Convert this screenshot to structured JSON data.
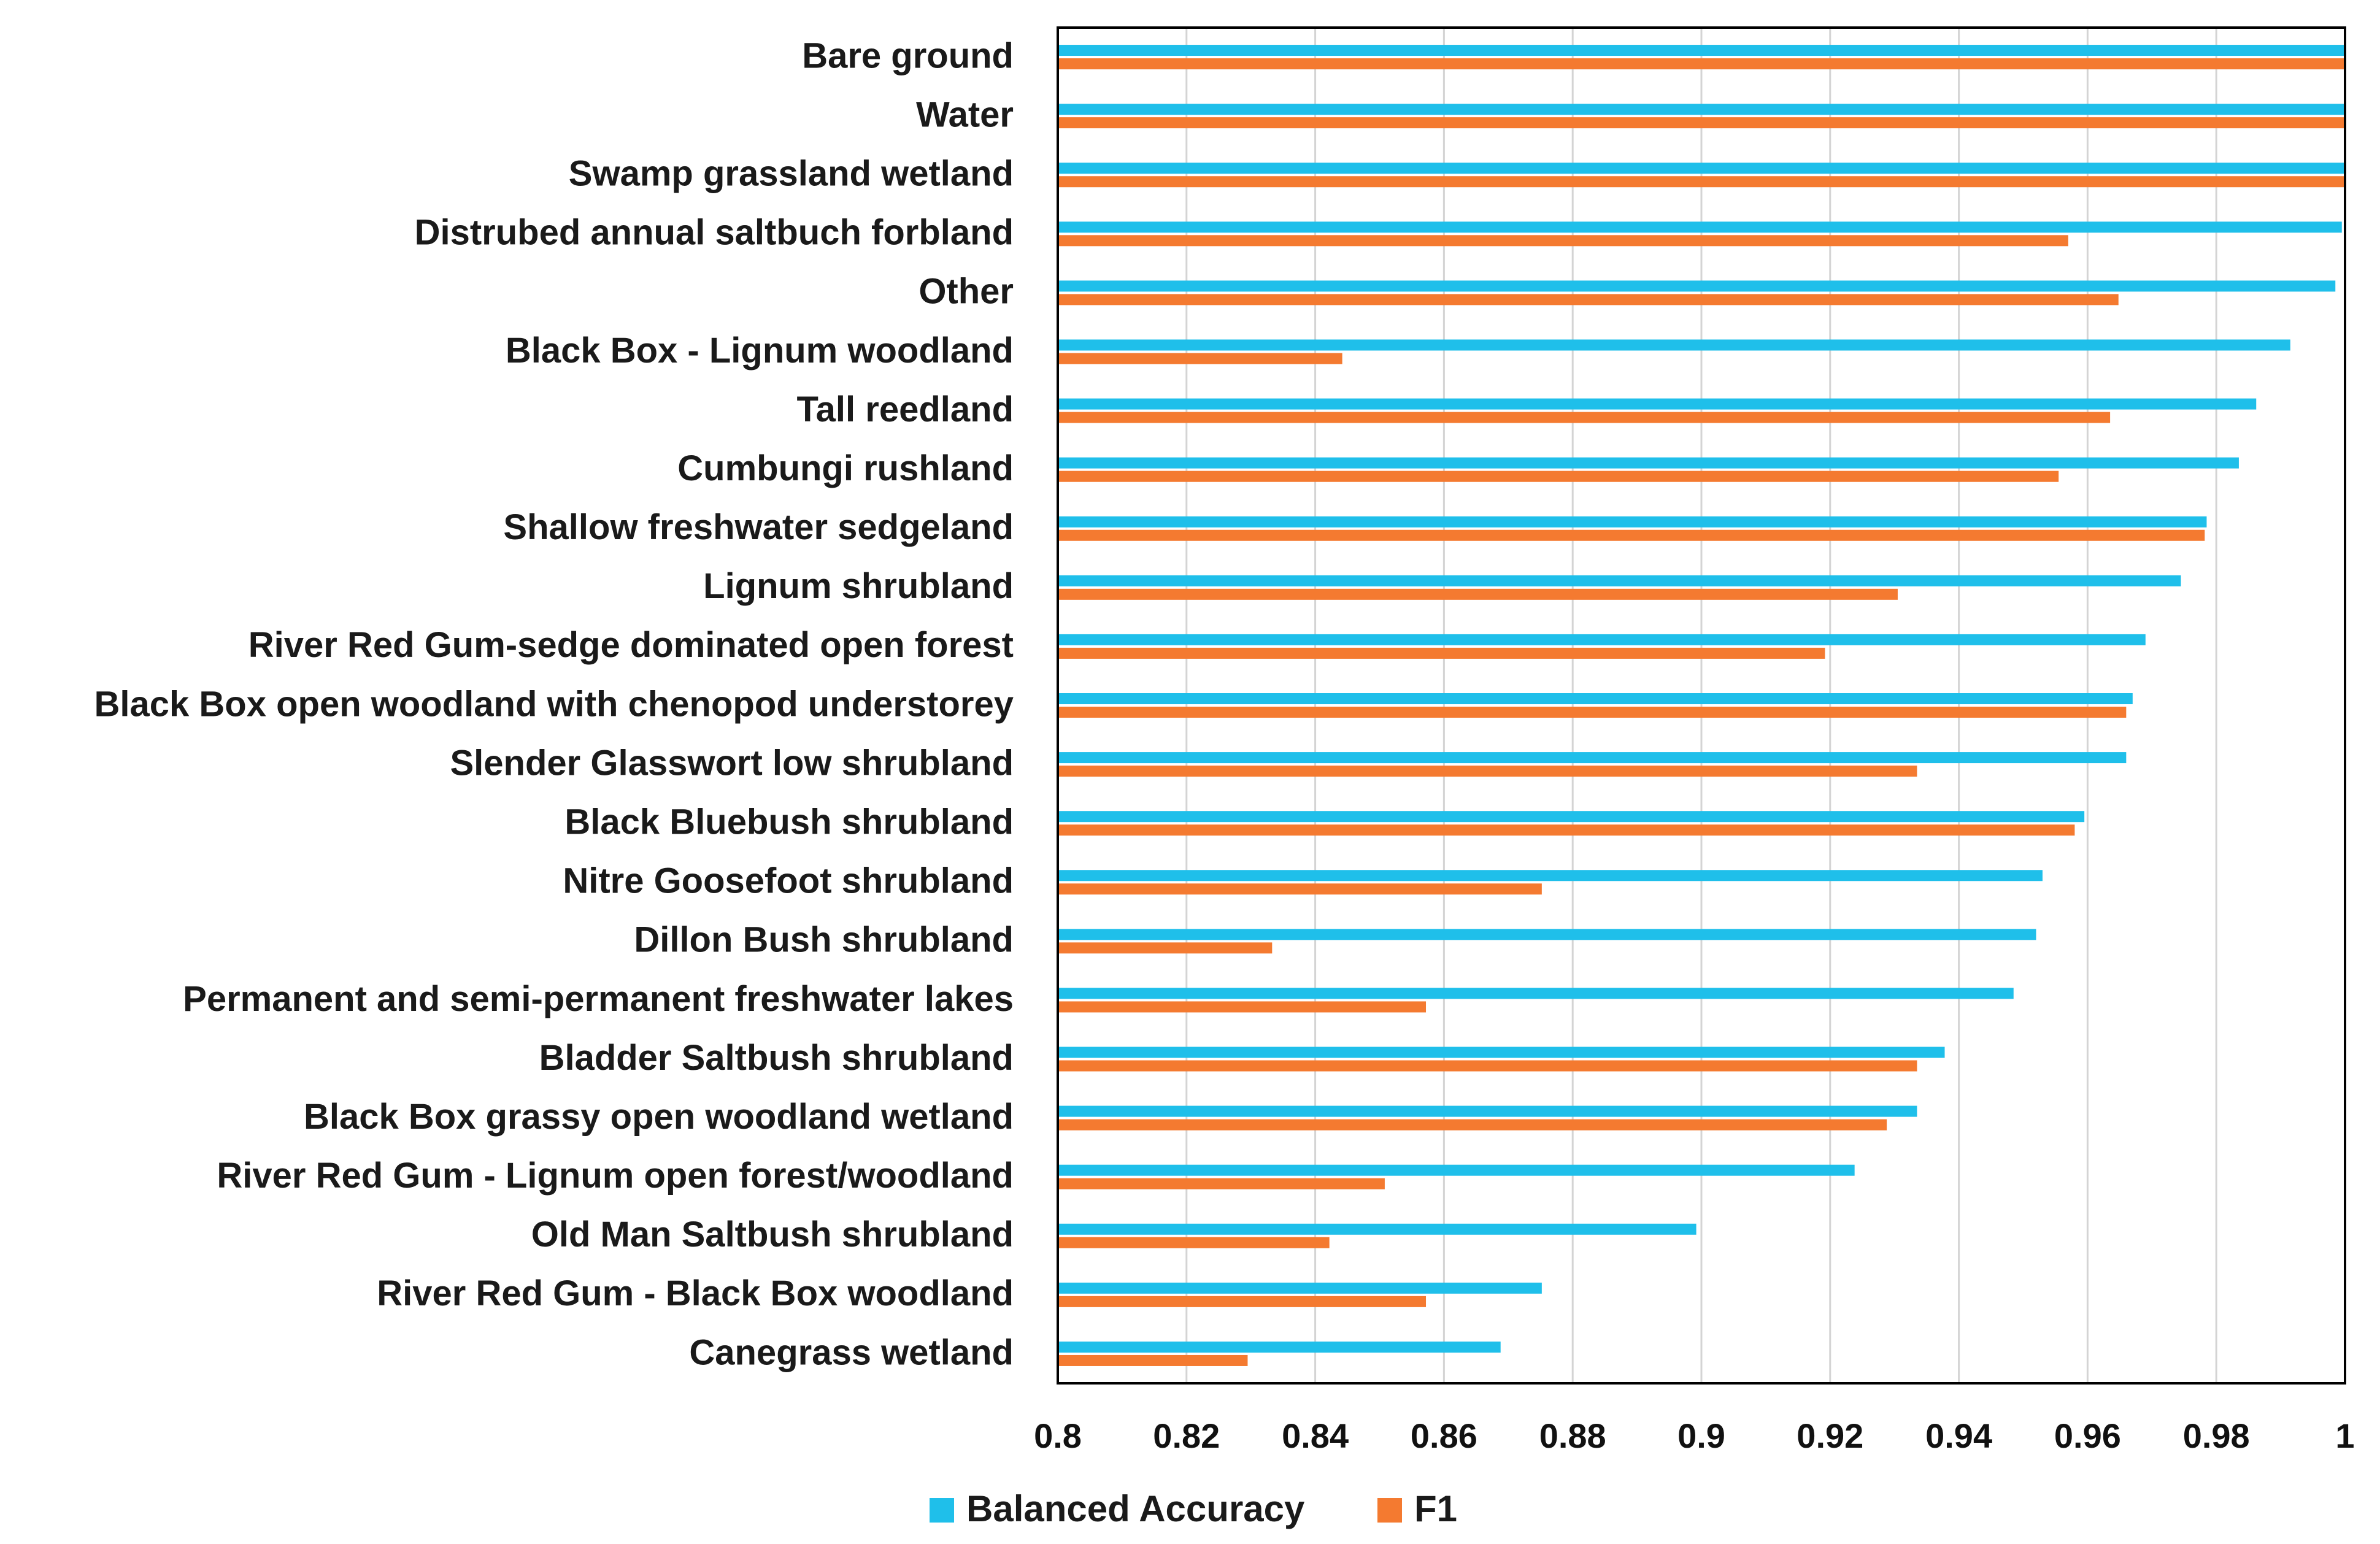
{
  "chart_data": {
    "type": "bar",
    "orientation": "horizontal",
    "categories": [
      "Bare ground",
      "Water",
      "Swamp grassland wetland",
      "Distrubed annual saltbuch forbland",
      "Other",
      "Black Box - Lignum woodland",
      "Tall reedland",
      "Cumbungi rushland",
      "Shallow freshwater  sedgeland",
      "Lignum shrubland",
      "River Red Gum-sedge dominated open forest",
      "Black Box open woodland with chenopod understorey",
      "Slender Glasswort low shrubland",
      "Black Bluebush shrubland",
      "Nitre Goosefoot shrubland",
      "Dillon Bush shrubland",
      "Permanent and semi-permanent freshwater lakes",
      "Bladder Saltbush shrubland",
      "Black Box grassy open woodland wetland",
      "River Red Gum - Lignum open forest/woodland",
      "Old Man Saltbush shrubland",
      "River Red Gum - Black Box woodland",
      "Canegrass wetland"
    ],
    "series": [
      {
        "name": "Balanced Accuracy",
        "color": "#1FBFEA",
        "values": [
          1.0,
          1.0,
          1.0,
          0.9995,
          0.9985,
          0.9915,
          0.9862,
          0.9835,
          0.9785,
          0.9745,
          0.969,
          0.967,
          0.966,
          0.9595,
          0.953,
          0.952,
          0.9485,
          0.9378,
          0.9335,
          0.9238,
          0.8992,
          0.8752,
          0.8688
        ]
      },
      {
        "name": "F1",
        "color": "#F47A30",
        "values": [
          1.0,
          1.0,
          1.0,
          0.957,
          0.9648,
          0.8442,
          0.9635,
          0.9555,
          0.9782,
          0.9305,
          0.9192,
          0.966,
          0.9335,
          0.958,
          0.8752,
          0.8333,
          0.8572,
          0.9335,
          0.9288,
          0.8508,
          0.8422,
          0.8572,
          0.8295
        ]
      }
    ],
    "xlim": [
      0.8,
      1.0
    ],
    "xticks": [
      "0.8",
      "0.82",
      "0.84",
      "0.86",
      "0.88",
      "0.9",
      "0.92",
      "0.94",
      "0.96",
      "0.98",
      "1"
    ],
    "grid": true,
    "legend_position": "bottom",
    "title": "",
    "xlabel": "",
    "ylabel": ""
  }
}
